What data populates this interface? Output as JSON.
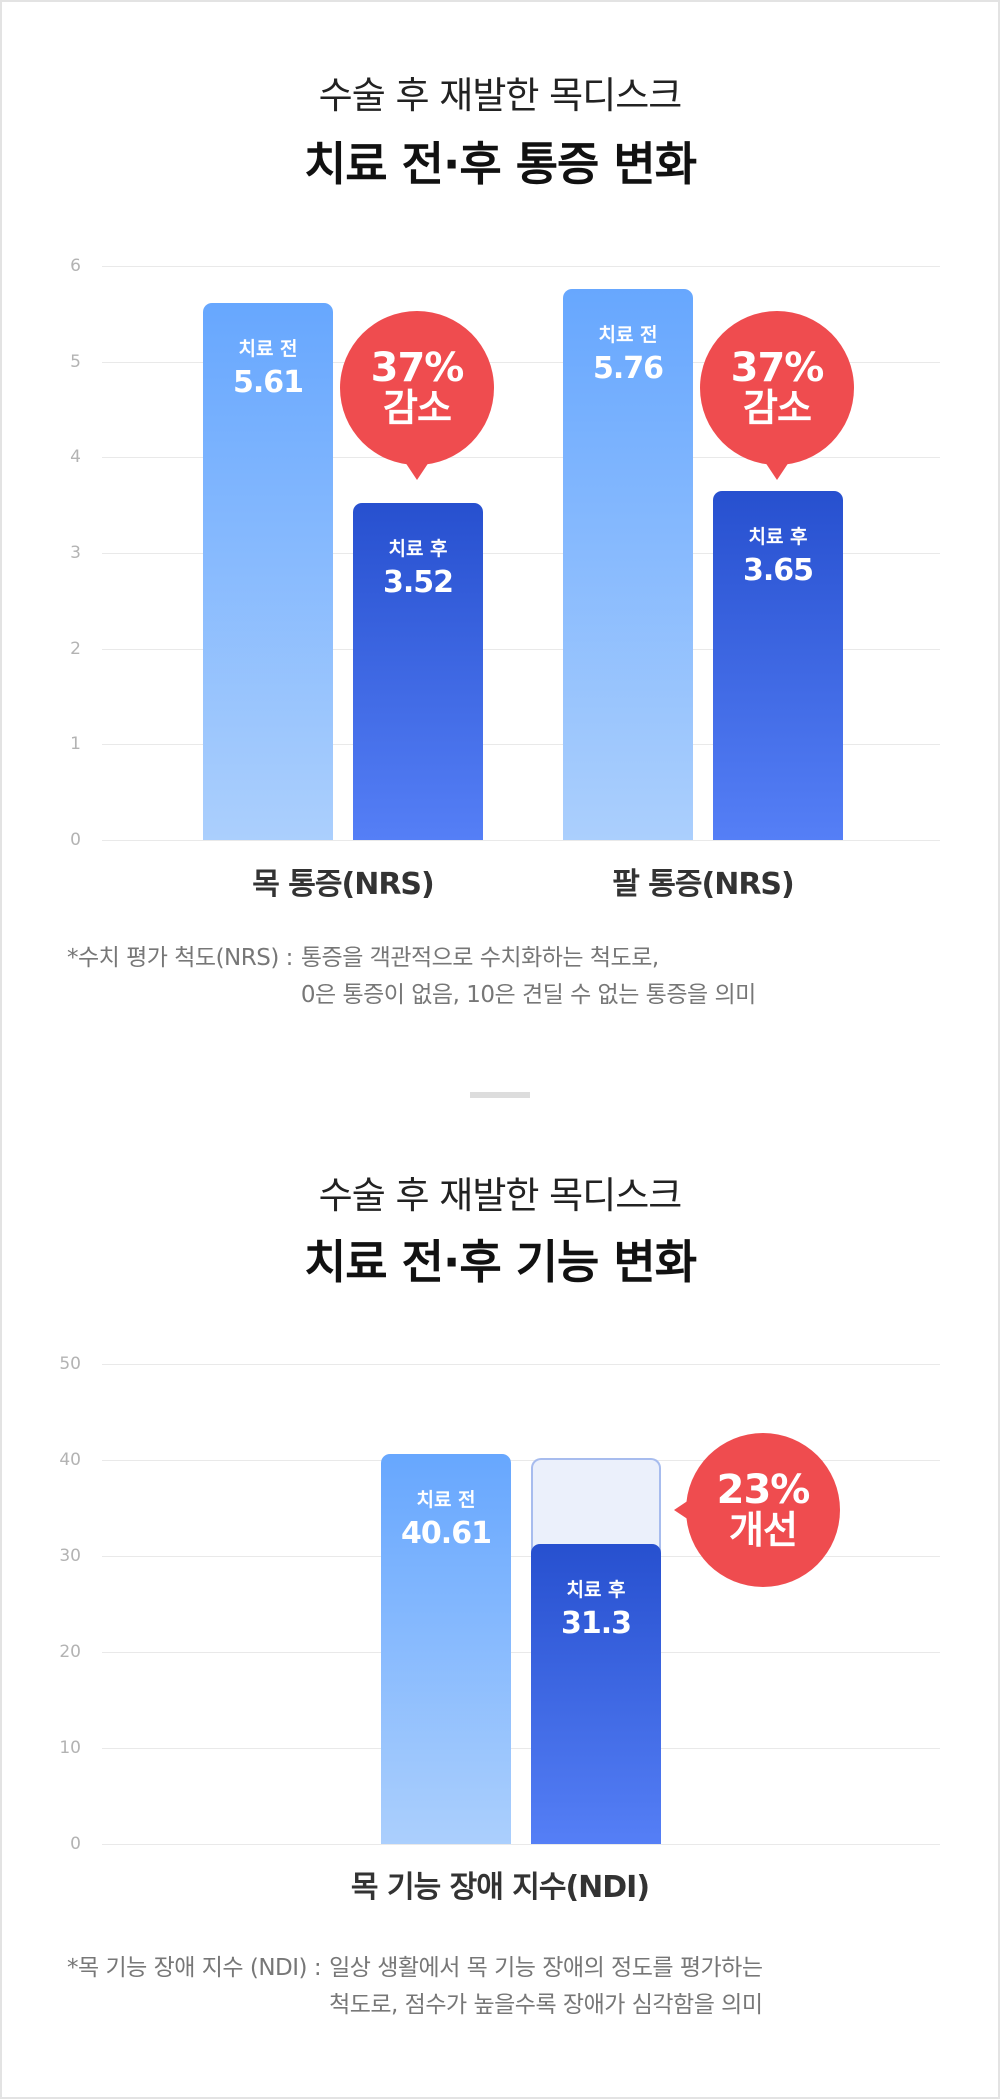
{
  "sections": [
    {
      "title_line1": "수술 후 재발한 목디스크",
      "title_line2": "치료 전·후 통증 변화",
      "footnote": {
        "label": "*수치 평가 척도(NRS) :",
        "lines": [
          "통증을 객관적으로 수치화하는 척도로,",
          "0은 통증이 없음, 10은 견딜 수 없는 통증을 의미"
        ]
      }
    },
    {
      "title_line1": "수술 후 재발한 목디스크",
      "title_line2": "치료 전·후 기능 변화",
      "footnote": {
        "label": "*목 기능 장애 지수 (NDI) :",
        "lines": [
          "일상 생활에서 목 기능 장애의 정도를 평가하는",
          "척도로, 점수가 높을수록 장애가 심각함을 의미"
        ]
      }
    }
  ],
  "colors": {
    "before_bar_top": "#67A7FE",
    "before_bar_bottom": "#ABCFFD",
    "after_bar_top": "#2750CF",
    "after_bar_bottom": "#557FF6",
    "ghost_bar_fill": "#EBF0FB",
    "ghost_bar_border": "#A7BCEE",
    "bubble": "#EF4C4F",
    "gridline": "#E9E9E9",
    "axis_label": "#B3B3B3",
    "footnote_text": "#777777"
  },
  "chart_data": [
    {
      "type": "bar",
      "title": "수술 후 재발한 목디스크 치료 전·후 통증 변화",
      "categories": [
        "목 통증(NRS)",
        "팔 통증(NRS)"
      ],
      "series": [
        {
          "name": "치료 전",
          "values": [
            5.61,
            5.76
          ]
        },
        {
          "name": "치료 후",
          "values": [
            3.52,
            3.65
          ]
        }
      ],
      "xlabel": "",
      "ylabel": "",
      "y_ticks": [
        "6",
        "5",
        "4",
        "3",
        "2",
        "1",
        "0"
      ],
      "ylim": [
        0,
        6
      ],
      "grid": true,
      "legend": null,
      "annotations": [
        {
          "category": "목 통증(NRS)",
          "line1": "37%",
          "line2": "감소"
        },
        {
          "category": "팔 통증(NRS)",
          "line1": "37%",
          "line2": "감소"
        }
      ]
    },
    {
      "type": "bar",
      "title": "수술 후 재발한 목디스크 치료 전·후 기능 변화",
      "categories": [
        "목 기능 장애 지수(NDI)"
      ],
      "series": [
        {
          "name": "치료 전",
          "values": [
            40.61
          ]
        },
        {
          "name": "치료 후",
          "values": [
            31.3
          ]
        }
      ],
      "xlabel": "",
      "ylabel": "",
      "y_ticks": [
        "50",
        "40",
        "30",
        "20",
        "10",
        "0"
      ],
      "ylim": [
        0,
        50
      ],
      "grid": true,
      "legend": null,
      "annotations": [
        {
          "category": "목 기능 장애 지수(NDI)",
          "line1": "23%",
          "line2": "개선"
        }
      ]
    }
  ]
}
